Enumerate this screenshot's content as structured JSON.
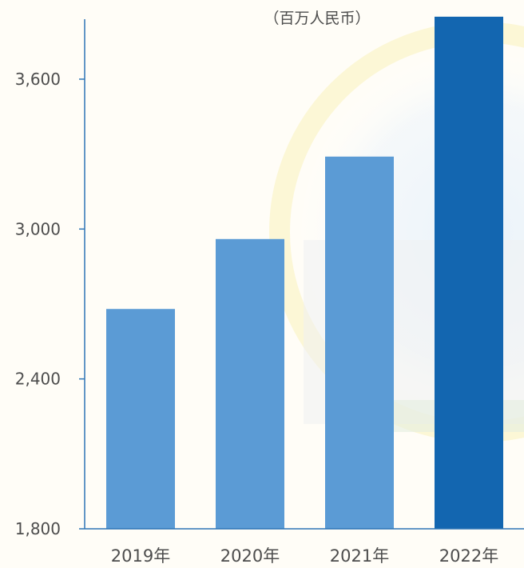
{
  "chart_data": {
    "type": "bar",
    "unit": "（百万人民币）",
    "categories": [
      "2019年",
      "2020年",
      "2021年",
      "2022年"
    ],
    "values": [
      2680,
      2960,
      3290,
      3850
    ],
    "highlight_index": 3,
    "ylim": [
      1800,
      3840
    ],
    "yticks": [
      1800,
      2400,
      3000,
      3600
    ],
    "ytick_labels": [
      "1,800",
      "2,400",
      "3,000",
      "3,600"
    ],
    "colors": {
      "bar": "#5b9bd5",
      "highlight": "#1366b0",
      "axis": "#2e75b6"
    },
    "grid": false,
    "legend": "none"
  }
}
